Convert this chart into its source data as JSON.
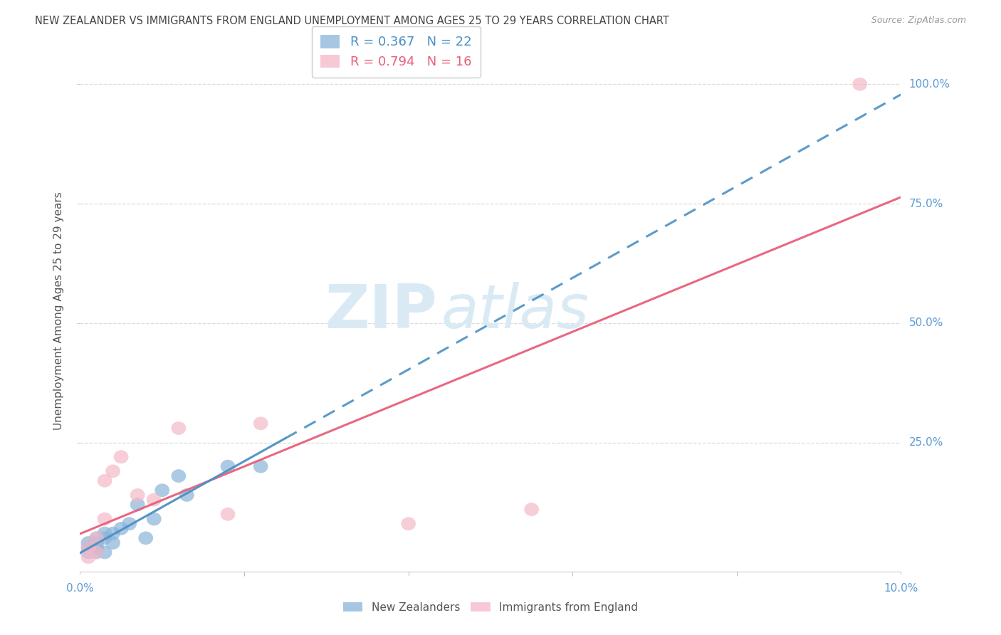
{
  "title": "NEW ZEALANDER VS IMMIGRANTS FROM ENGLAND UNEMPLOYMENT AMONG AGES 25 TO 29 YEARS CORRELATION CHART",
  "source": "Source: ZipAtlas.com",
  "ylabel": "Unemployment Among Ages 25 to 29 years",
  "ytick_labels": [
    "100.0%",
    "75.0%",
    "50.0%",
    "25.0%"
  ],
  "ytick_values": [
    1.0,
    0.75,
    0.5,
    0.25
  ],
  "legend_nz": "R = 0.367   N = 22",
  "legend_eng": "R = 0.794   N = 16",
  "legend_label_nz": "New Zealanders",
  "legend_label_eng": "Immigrants from England",
  "nz_color": "#8ab4d9",
  "eng_color": "#f5b8c8",
  "nz_line_color": "#4a90c4",
  "eng_line_color": "#e8607a",
  "title_color": "#444444",
  "axis_label_color": "#5b9bd5",
  "watermark_zip_color": "#daeaf5",
  "watermark_atlas_color": "#daeaf5",
  "background_color": "#ffffff",
  "nz_x": [
    0.001,
    0.001,
    0.001,
    0.002,
    0.002,
    0.002,
    0.002,
    0.003,
    0.003,
    0.003,
    0.004,
    0.004,
    0.005,
    0.006,
    0.007,
    0.008,
    0.009,
    0.01,
    0.012,
    0.013,
    0.018,
    0.022
  ],
  "nz_y": [
    0.02,
    0.03,
    0.04,
    0.02,
    0.03,
    0.04,
    0.05,
    0.05,
    0.06,
    0.02,
    0.06,
    0.04,
    0.07,
    0.08,
    0.12,
    0.05,
    0.09,
    0.15,
    0.18,
    0.14,
    0.2,
    0.2
  ],
  "eng_x": [
    0.001,
    0.001,
    0.002,
    0.002,
    0.003,
    0.003,
    0.004,
    0.005,
    0.007,
    0.009,
    0.012,
    0.018,
    0.022,
    0.04,
    0.055,
    0.095
  ],
  "eng_y": [
    0.01,
    0.03,
    0.02,
    0.05,
    0.09,
    0.17,
    0.19,
    0.22,
    0.14,
    0.13,
    0.28,
    0.1,
    0.29,
    0.08,
    0.11,
    1.0
  ],
  "xlim": [
    0.0,
    0.1
  ],
  "ylim": [
    -0.02,
    1.07
  ],
  "grid_color": "#d8d8d8",
  "title_fontsize": 10.5,
  "source_fontsize": 9,
  "nz_line_slope": 5.0,
  "nz_line_intercept": 0.01,
  "nz_line_xmin": 0.0,
  "nz_line_xmax": 0.038,
  "eng_line_slope": 10.5,
  "eng_line_intercept": -0.04
}
